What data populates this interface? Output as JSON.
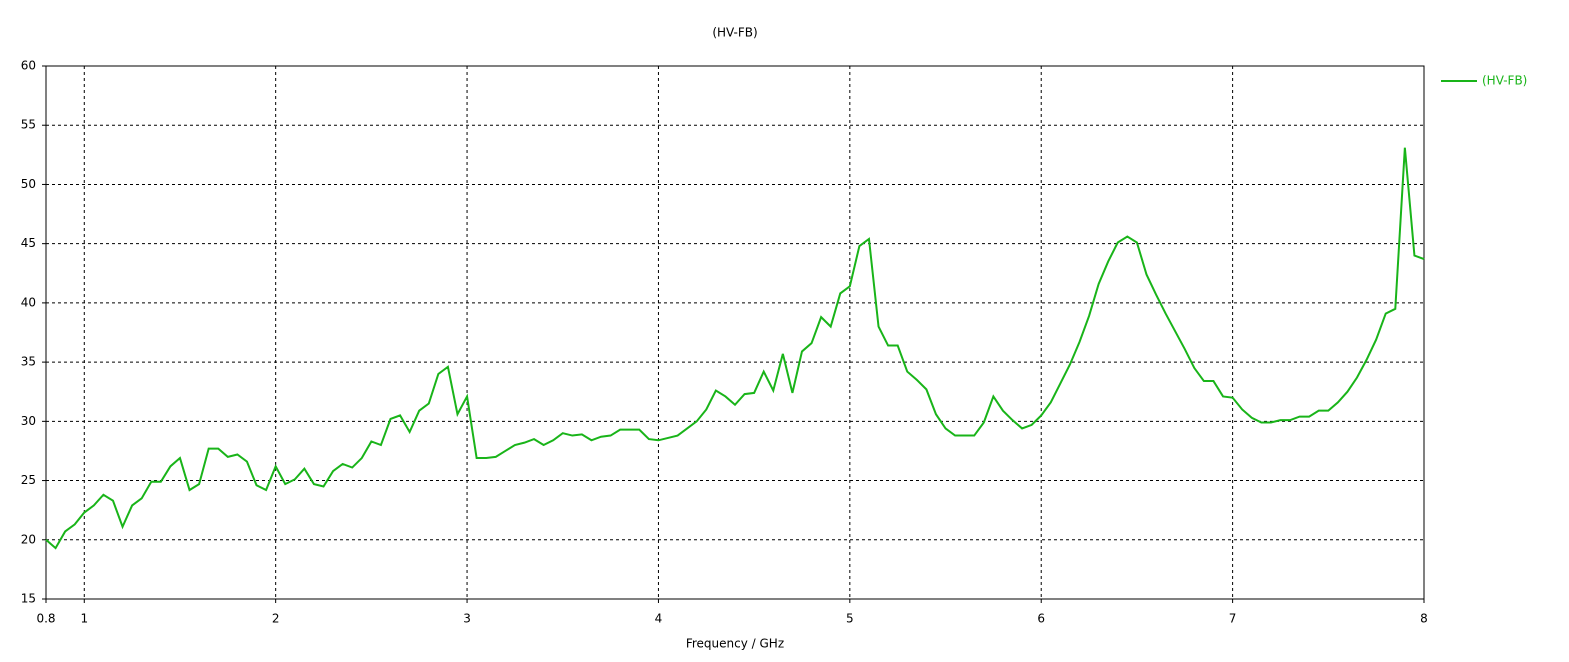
{
  "chart_data": {
    "type": "line",
    "title": "(HV-FB)",
    "x_label": "Frequency / GHz",
    "x": [
      0.8,
      0.85,
      0.9,
      0.95,
      1,
      1.05,
      1.1,
      1.15,
      1.2,
      1.25,
      1.3,
      1.35,
      1.4,
      1.45,
      1.5,
      1.55,
      1.6,
      1.65,
      1.7,
      1.75,
      1.8,
      1.85,
      1.9,
      1.95,
      2,
      2.05,
      2.1,
      2.15,
      2.2,
      2.25,
      2.3,
      2.35,
      2.4,
      2.45,
      2.5,
      2.55,
      2.6,
      2.65,
      2.7,
      2.75,
      2.8,
      2.85,
      2.9,
      2.95,
      3,
      3.05,
      3.1,
      3.15,
      3.2,
      3.25,
      3.3,
      3.35,
      3.4,
      3.45,
      3.5,
      3.55,
      3.6,
      3.65,
      3.7,
      3.75,
      3.8,
      3.85,
      3.9,
      3.95,
      4,
      4.05,
      4.1,
      4.15,
      4.2,
      4.25,
      4.3,
      4.35,
      4.4,
      4.45,
      4.5,
      4.55,
      4.6,
      4.65,
      4.7,
      4.75,
      4.8,
      4.85,
      4.9,
      4.95,
      5,
      5.05,
      5.1,
      5.15,
      5.2,
      5.25,
      5.3,
      5.35,
      5.4,
      5.45,
      5.5,
      5.55,
      5.6,
      5.65,
      5.7,
      5.75,
      5.8,
      5.85,
      5.9,
      5.95,
      6,
      6.05,
      6.1,
      6.15,
      6.2,
      6.25,
      6.3,
      6.35,
      6.4,
      6.45,
      6.5,
      6.55,
      6.6,
      6.65,
      6.7,
      6.75,
      6.8,
      6.85,
      6.9,
      6.95,
      7,
      7.05,
      7.1,
      7.15,
      7.2,
      7.25,
      7.3,
      7.35,
      7.4,
      7.45,
      7.5,
      7.55,
      7.6,
      7.65,
      7.7,
      7.75,
      7.8,
      7.85,
      7.9,
      7.95,
      8
    ],
    "series": [
      {
        "name": "(HV-FB)",
        "color": "#19b419",
        "values": [
          20.0,
          19.3,
          20.7,
          21.3,
          22.3,
          22.9,
          23.8,
          23.3,
          21.1,
          22.9,
          23.5,
          24.9,
          24.9,
          26.2,
          26.9,
          24.2,
          24.7,
          27.7,
          27.7,
          27.0,
          27.2,
          26.6,
          24.6,
          24.2,
          26.2,
          24.7,
          25.1,
          26.0,
          24.7,
          24.5,
          25.8,
          26.4,
          26.1,
          26.9,
          28.3,
          28.0,
          30.2,
          30.5,
          29.1,
          30.9,
          31.5,
          34.0,
          34.6,
          30.6,
          32.1,
          26.9,
          26.9,
          27.0,
          27.5,
          28.0,
          28.2,
          28.5,
          28.0,
          28.4,
          29.0,
          28.8,
          28.9,
          28.4,
          28.7,
          28.8,
          29.3,
          29.3,
          29.3,
          28.5,
          28.4,
          28.6,
          28.8,
          29.4,
          30.0,
          31.0,
          32.6,
          32.1,
          31.4,
          32.3,
          32.4,
          34.2,
          32.6,
          35.7,
          32.4,
          35.9,
          36.6,
          38.8,
          38.0,
          40.8,
          41.4,
          44.8,
          45.4,
          38.0,
          36.4,
          36.4,
          34.2,
          33.5,
          32.7,
          30.6,
          29.4,
          28.8,
          28.8,
          28.8,
          29.9,
          32.1,
          30.9,
          30.1,
          29.4,
          29.7,
          30.5,
          31.6,
          33.2,
          34.8,
          36.7,
          38.9,
          41.6,
          43.5,
          45.1,
          45.6,
          45.1,
          42.4,
          40.7,
          39.1,
          37.6,
          36.1,
          34.5,
          33.4,
          33.4,
          32.1,
          32.0,
          31.0,
          30.3,
          29.9,
          29.9,
          30.1,
          30.1,
          30.4,
          30.4,
          30.9,
          30.9,
          31.6,
          32.5,
          33.7,
          35.2,
          36.9,
          39.1,
          39.5,
          53.1,
          44.0,
          43.7
        ]
      }
    ],
    "xlim": [
      0.8,
      8
    ],
    "xticks": [
      0.8,
      1,
      2,
      3,
      4,
      5,
      6,
      7,
      8
    ],
    "ylim": [
      15,
      60
    ],
    "yticks": [
      15,
      20,
      25,
      30,
      35,
      40,
      45,
      50,
      55,
      60
    ],
    "grid": true,
    "legend": "right"
  }
}
